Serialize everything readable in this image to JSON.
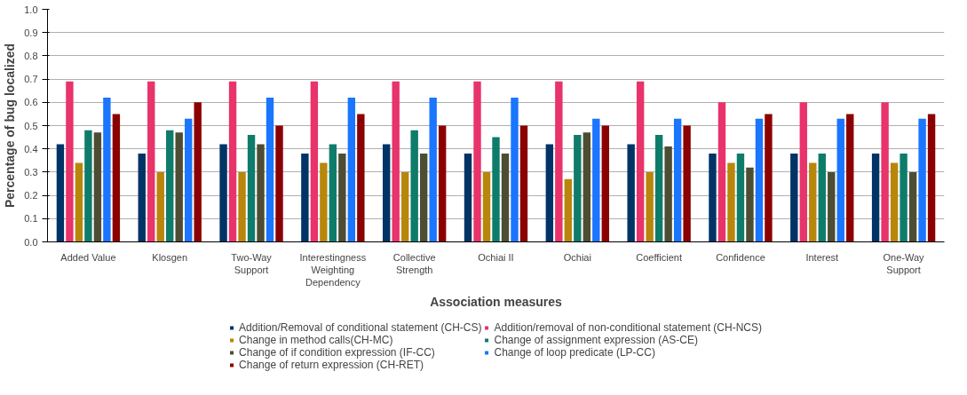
{
  "chart_data": {
    "type": "bar",
    "xlabel": "Association measures",
    "ylabel": "Percentage of bug localized",
    "categories": [
      "Added Value",
      "Klosgen",
      "Two-Way\nSupport",
      "Interestingness\nWeighting\nDependency",
      "Collective\nStrength",
      "Ochiai II",
      "Ochiai",
      "Coefficient",
      "Confidence",
      "Interest",
      "One-Way\nSupport"
    ],
    "series": [
      {
        "name": "Addition/Removal of conditional statement (CH-CS)",
        "color": "#003366",
        "values": [
          0.42,
          0.38,
          0.42,
          0.38,
          0.42,
          0.38,
          0.42,
          0.42,
          0.38,
          0.38,
          0.38
        ]
      },
      {
        "name": "Addition/removal of non-conditional statement (CH-NCS)",
        "color": "#e8336b",
        "values": [
          0.69,
          0.69,
          0.69,
          0.69,
          0.69,
          0.69,
          0.69,
          0.69,
          0.6,
          0.6,
          0.6
        ]
      },
      {
        "name": "Change in method calls(CH-MC)",
        "color": "#b8860b",
        "values": [
          0.34,
          0.3,
          0.3,
          0.34,
          0.3,
          0.3,
          0.27,
          0.3,
          0.34,
          0.34,
          0.34
        ]
      },
      {
        "name": "Change of assignment expression (AS-CE)",
        "color": "#0e7c6b",
        "values": [
          0.48,
          0.48,
          0.46,
          0.42,
          0.48,
          0.45,
          0.46,
          0.46,
          0.38,
          0.38,
          0.38
        ]
      },
      {
        "name": "Change of if condition expression (IF-CC)",
        "color": "#4d4d33",
        "values": [
          0.47,
          0.47,
          0.42,
          0.38,
          0.38,
          0.38,
          0.47,
          0.41,
          0.32,
          0.3,
          0.3
        ]
      },
      {
        "name": "Change of loop predicate (LP-CC)",
        "color": "#1a75ff",
        "values": [
          0.62,
          0.53,
          0.62,
          0.62,
          0.62,
          0.62,
          0.53,
          0.53,
          0.53,
          0.53,
          0.53
        ]
      },
      {
        "name": "Change of return expression (CH-RET)",
        "color": "#8b0000",
        "values": [
          0.55,
          0.6,
          0.5,
          0.55,
          0.5,
          0.5,
          0.5,
          0.5,
          0.55,
          0.55,
          0.55
        ]
      }
    ],
    "ylim": [
      0,
      1.0
    ],
    "yticks": [
      {
        "value": 0,
        "label": "0.0"
      },
      0.1,
      0.2,
      0.3,
      0.4,
      0.5,
      0.6,
      0.7,
      0.8,
      0.9,
      {
        "value": 1,
        "label": "1.0"
      }
    ],
    "grid": "y",
    "legend": "bottom"
  }
}
